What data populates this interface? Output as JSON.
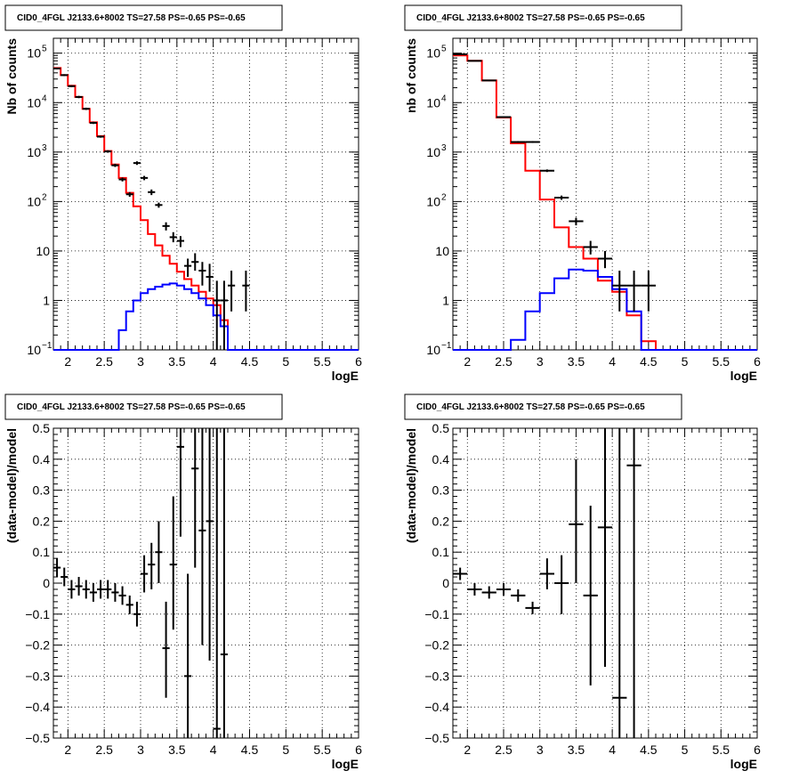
{
  "chart_data": [
    {
      "id": "top-left",
      "type": "histogram",
      "title": "CID0_4FGL J2133.6+8002 TS=27.58 PS=-0.65 PS=-0.65",
      "xlabel": "logE",
      "ylabel": "Nb of counts",
      "xlim": [
        1.8,
        6.0
      ],
      "ylim": [
        0.1,
        200000
      ],
      "yscale": "log",
      "grid": true,
      "xticks": [
        {
          "v": 2,
          "label": "2"
        },
        {
          "v": 2.5,
          "label": "2.5"
        },
        {
          "v": 3,
          "label": "3"
        },
        {
          "v": 3.5,
          "label": "3.5"
        },
        {
          "v": 4,
          "label": "4"
        },
        {
          "v": 4.5,
          "label": "4.5"
        },
        {
          "v": 5,
          "label": "5"
        },
        {
          "v": 5.5,
          "label": "5.5"
        },
        {
          "v": 6,
          "label": "6"
        }
      ],
      "yticks": [
        {
          "v": 0.1,
          "base": "10",
          "exp": "−1"
        },
        {
          "v": 1,
          "base": "1",
          "exp": ""
        },
        {
          "v": 10,
          "base": "10",
          "exp": ""
        },
        {
          "v": 100,
          "base": "10",
          "exp": "2"
        },
        {
          "v": 1000,
          "base": "10",
          "exp": "3"
        },
        {
          "v": 10000,
          "base": "10",
          "exp": "4"
        },
        {
          "v": 100000,
          "base": "10",
          "exp": "5"
        }
      ],
      "series": [
        {
          "kind": "step",
          "color": "#ff0000",
          "x0": 1.8,
          "dx": 0.1,
          "values": [
            50000,
            36000,
            22000,
            13000,
            7500,
            4000,
            2100,
            1050,
            560,
            300,
            150,
            80,
            42,
            22,
            13,
            8,
            5.5,
            3.8,
            2.7,
            2,
            1.5,
            1.1,
            0.8,
            0.4,
            0.1,
            0.1,
            0.1,
            0.1,
            0.1,
            0.1,
            0.1,
            0.1,
            0.1,
            0.1,
            0.1,
            0.1,
            0.1,
            0.1,
            0.1,
            0.1,
            0.1,
            0.1
          ]
        },
        {
          "kind": "step",
          "color": "#0000ff",
          "x0": 1.8,
          "dx": 0.1,
          "values": [
            0.1,
            0.1,
            0.1,
            0.1,
            0.1,
            0.1,
            0.1,
            0.1,
            0.1,
            0.25,
            0.6,
            1.0,
            1.4,
            1.7,
            1.9,
            2.1,
            2.2,
            2.0,
            1.7,
            1.4,
            1.1,
            0.8,
            0.5,
            0.3,
            0.1,
            0.1,
            0.1,
            0.1,
            0.1,
            0.1,
            0.1,
            0.1,
            0.1,
            0.1,
            0.1,
            0.1,
            0.1,
            0.1,
            0.1,
            0.1,
            0.1,
            0.1
          ]
        },
        {
          "kind": "points",
          "color": "#000000",
          "hw": 0.05,
          "points": [
            {
              "x": 1.85,
              "y": 49000,
              "lo": 47000,
              "hi": 51000
            },
            {
              "x": 1.95,
              "y": 36000,
              "lo": 34500,
              "hi": 37500
            },
            {
              "x": 2.05,
              "y": 21500,
              "lo": 20500,
              "hi": 22500
            },
            {
              "x": 2.15,
              "y": 13000,
              "lo": 12300,
              "hi": 13700
            },
            {
              "x": 2.25,
              "y": 7500,
              "lo": 7100,
              "hi": 7900
            },
            {
              "x": 2.35,
              "y": 3900,
              "lo": 3700,
              "hi": 4100
            },
            {
              "x": 2.45,
              "y": 2050,
              "lo": 1950,
              "hi": 2150
            },
            {
              "x": 2.55,
              "y": 1030,
              "lo": 970,
              "hi": 1090
            },
            {
              "x": 2.65,
              "y": 540,
              "lo": 500,
              "hi": 580
            },
            {
              "x": 2.75,
              "y": 280,
              "lo": 255,
              "hi": 305
            },
            {
              "x": 2.85,
              "y": 140,
              "lo": 125,
              "hi": 155
            },
            {
              "x": 2.95,
              "y": 600,
              "lo": 550,
              "hi": 650
            },
            {
              "x": 3.05,
              "y": 300,
              "lo": 270,
              "hi": 330
            },
            {
              "x": 3.15,
              "y": 155,
              "lo": 135,
              "hi": 175
            },
            {
              "x": 3.25,
              "y": 85,
              "lo": 75,
              "hi": 95
            },
            {
              "x": 3.35,
              "y": 32,
              "lo": 26,
              "hi": 38
            },
            {
              "x": 3.45,
              "y": 19,
              "lo": 15,
              "hi": 24
            },
            {
              "x": 3.55,
              "y": 16,
              "lo": 12,
              "hi": 20
            },
            {
              "x": 3.65,
              "y": 5,
              "lo": 3,
              "hi": 7
            },
            {
              "x": 3.75,
              "y": 6,
              "lo": 4,
              "hi": 9
            },
            {
              "x": 3.85,
              "y": 4,
              "lo": 2,
              "hi": 6
            },
            {
              "x": 3.95,
              "y": 3,
              "lo": 1.5,
              "hi": 5.5
            },
            {
              "x": 4.05,
              "y": 1,
              "lo": 0.1,
              "hi": 2.5
            },
            {
              "x": 4.15,
              "y": 1,
              "lo": 0.1,
              "hi": 2.5
            },
            {
              "x": 4.25,
              "y": 2,
              "lo": 0.6,
              "hi": 4
            },
            {
              "x": 4.45,
              "y": 2,
              "lo": 0.6,
              "hi": 4
            }
          ]
        }
      ]
    },
    {
      "id": "top-right",
      "type": "histogram",
      "title": "CID0_4FGL J2133.6+8002 TS=27.58 PS=-0.65 PS=-0.65",
      "xlabel": "logE",
      "ylabel": "nb of counts",
      "xlim": [
        1.8,
        6.0
      ],
      "ylim": [
        0.1,
        200000
      ],
      "yscale": "log",
      "grid": true,
      "xticks": [
        {
          "v": 2,
          "label": "2"
        },
        {
          "v": 2.5,
          "label": "2.5"
        },
        {
          "v": 3,
          "label": "3"
        },
        {
          "v": 3.5,
          "label": "3.5"
        },
        {
          "v": 4,
          "label": "4"
        },
        {
          "v": 4.5,
          "label": "4.5"
        },
        {
          "v": 5,
          "label": "5"
        },
        {
          "v": 5.5,
          "label": "5.5"
        },
        {
          "v": 6,
          "label": "6"
        }
      ],
      "yticks": [
        {
          "v": 0.1,
          "base": "10",
          "exp": "−1"
        },
        {
          "v": 1,
          "base": "1",
          "exp": ""
        },
        {
          "v": 10,
          "base": "10",
          "exp": ""
        },
        {
          "v": 100,
          "base": "10",
          "exp": "2"
        },
        {
          "v": 1000,
          "base": "10",
          "exp": "3"
        },
        {
          "v": 10000,
          "base": "10",
          "exp": "4"
        },
        {
          "v": 100000,
          "base": "10",
          "exp": "5"
        }
      ],
      "series": [
        {
          "kind": "step",
          "color": "#ff0000",
          "x0": 1.8,
          "dx": 0.2,
          "values": [
            90000,
            70000,
            28000,
            5000,
            1500,
            420,
            110,
            30,
            12,
            7,
            2.5,
            1.5,
            0.5,
            0.15,
            0.1,
            0.1,
            0.1,
            0.1,
            0.1,
            0.1,
            0.1
          ]
        },
        {
          "kind": "step",
          "color": "#0000ff",
          "x0": 1.8,
          "dx": 0.2,
          "values": [
            0.1,
            0.1,
            0.1,
            0.1,
            0.16,
            0.6,
            1.4,
            2.8,
            4.2,
            4.0,
            3.0,
            1.7,
            0.6,
            0.1,
            0.1,
            0.1,
            0.1,
            0.1,
            0.1,
            0.1,
            0.1
          ]
        },
        {
          "kind": "points",
          "color": "#000000",
          "hw": 0.1,
          "points": [
            {
              "x": 1.9,
              "y": 95000,
              "lo": 93000,
              "hi": 97000
            },
            {
              "x": 2.1,
              "y": 70000,
              "lo": 68500,
              "hi": 71500
            },
            {
              "x": 2.3,
              "y": 28000,
              "lo": 27200,
              "hi": 28800
            },
            {
              "x": 2.5,
              "y": 5100,
              "lo": 4950,
              "hi": 5250
            },
            {
              "x": 2.7,
              "y": 1600,
              "lo": 1530,
              "hi": 1670
            },
            {
              "x": 2.9,
              "y": 1600,
              "lo": 1530,
              "hi": 1670
            },
            {
              "x": 3.1,
              "y": 420,
              "lo": 395,
              "hi": 445
            },
            {
              "x": 3.3,
              "y": 120,
              "lo": 108,
              "hi": 132
            },
            {
              "x": 3.5,
              "y": 40,
              "lo": 33,
              "hi": 47
            },
            {
              "x": 3.7,
              "y": 12,
              "lo": 8.5,
              "hi": 16
            },
            {
              "x": 3.9,
              "y": 7,
              "lo": 4.5,
              "hi": 10
            },
            {
              "x": 4.1,
              "y": 2,
              "lo": 0.6,
              "hi": 4
            },
            {
              "x": 4.3,
              "y": 2,
              "lo": 0.6,
              "hi": 4
            },
            {
              "x": 4.5,
              "y": 2,
              "lo": 0.6,
              "hi": 4
            }
          ]
        }
      ]
    },
    {
      "id": "bottom-left",
      "type": "scatter",
      "title": "CID0_4FGL J2133.6+8002 TS=27.58 PS=-0.65 PS=-0.65",
      "xlabel": "logE",
      "ylabel": "(data-model)/model",
      "xlim": [
        1.8,
        6.0
      ],
      "ylim": [
        -0.5,
        0.5
      ],
      "yscale": "linear",
      "grid": true,
      "xticks": [
        {
          "v": 2,
          "label": "2"
        },
        {
          "v": 2.5,
          "label": "2.5"
        },
        {
          "v": 3,
          "label": "3"
        },
        {
          "v": 3.5,
          "label": "3.5"
        },
        {
          "v": 4,
          "label": "4"
        },
        {
          "v": 4.5,
          "label": "4.5"
        },
        {
          "v": 5,
          "label": "5"
        },
        {
          "v": 5.5,
          "label": "5.5"
        },
        {
          "v": 6,
          "label": "6"
        }
      ],
      "yticks": [
        {
          "v": -0.5,
          "label": "−0.5"
        },
        {
          "v": -0.4,
          "label": "−0.4"
        },
        {
          "v": -0.3,
          "label": "−0.3"
        },
        {
          "v": -0.2,
          "label": "−0.2"
        },
        {
          "v": -0.1,
          "label": "−0.1"
        },
        {
          "v": 0,
          "label": "0"
        },
        {
          "v": 0.1,
          "label": "0.1"
        },
        {
          "v": 0.2,
          "label": "0.2"
        },
        {
          "v": 0.3,
          "label": "0.3"
        },
        {
          "v": 0.4,
          "label": "0.4"
        },
        {
          "v": 0.5,
          "label": "0.5"
        }
      ],
      "series": [
        {
          "kind": "points",
          "color": "#000000",
          "hw": 0.05,
          "points": [
            {
              "x": 1.85,
              "y": 0.05,
              "lo": 0.02,
              "hi": 0.08
            },
            {
              "x": 1.95,
              "y": 0.02,
              "lo": -0.01,
              "hi": 0.05
            },
            {
              "x": 2.05,
              "y": -0.02,
              "lo": -0.05,
              "hi": 0.01
            },
            {
              "x": 2.15,
              "y": -0.01,
              "lo": -0.04,
              "hi": 0.02
            },
            {
              "x": 2.25,
              "y": -0.02,
              "lo": -0.05,
              "hi": 0.01
            },
            {
              "x": 2.35,
              "y": -0.03,
              "lo": -0.06,
              "hi": 0.0
            },
            {
              "x": 2.45,
              "y": -0.02,
              "lo": -0.05,
              "hi": 0.01
            },
            {
              "x": 2.55,
              "y": -0.02,
              "lo": -0.05,
              "hi": 0.01
            },
            {
              "x": 2.65,
              "y": -0.03,
              "lo": -0.06,
              "hi": 0.0
            },
            {
              "x": 2.75,
              "y": -0.04,
              "lo": -0.07,
              "hi": -0.01
            },
            {
              "x": 2.85,
              "y": -0.07,
              "lo": -0.1,
              "hi": -0.04
            },
            {
              "x": 2.95,
              "y": -0.1,
              "lo": -0.14,
              "hi": -0.06
            },
            {
              "x": 3.05,
              "y": 0.03,
              "lo": -0.03,
              "hi": 0.09
            },
            {
              "x": 3.15,
              "y": 0.06,
              "lo": -0.02,
              "hi": 0.13
            },
            {
              "x": 3.25,
              "y": 0.1,
              "lo": 0.0,
              "hi": 0.2
            },
            {
              "x": 3.35,
              "y": -0.21,
              "lo": -0.37,
              "hi": -0.06
            },
            {
              "x": 3.45,
              "y": 0.06,
              "lo": -0.15,
              "hi": 0.28
            },
            {
              "x": 3.55,
              "y": 0.44,
              "lo": 0.15,
              "hi": 0.55
            },
            {
              "x": 3.65,
              "y": -0.3,
              "lo": -0.55,
              "hi": 0.03
            },
            {
              "x": 3.75,
              "y": 0.37,
              "lo": 0.05,
              "hi": 0.55
            },
            {
              "x": 3.85,
              "y": 0.17,
              "lo": -0.2,
              "hi": 0.55
            },
            {
              "x": 3.95,
              "y": 0.2,
              "lo": -0.25,
              "hi": 0.55
            },
            {
              "x": 4.05,
              "y": -0.47,
              "lo": -0.55,
              "hi": 0.55
            },
            {
              "x": 4.15,
              "y": -0.23,
              "lo": -0.55,
              "hi": 0.55
            }
          ]
        }
      ]
    },
    {
      "id": "bottom-right",
      "type": "scatter",
      "title": "CID0_4FGL J2133.6+8002 TS=27.58 PS=-0.65 PS=-0.65",
      "xlabel": "logE",
      "ylabel": "(data-model)/model",
      "xlim": [
        1.8,
        6.0
      ],
      "ylim": [
        -0.5,
        0.5
      ],
      "yscale": "linear",
      "grid": true,
      "xticks": [
        {
          "v": 2,
          "label": "2"
        },
        {
          "v": 2.5,
          "label": "2.5"
        },
        {
          "v": 3,
          "label": "3"
        },
        {
          "v": 3.5,
          "label": "3.5"
        },
        {
          "v": 4,
          "label": "4"
        },
        {
          "v": 4.5,
          "label": "4.5"
        },
        {
          "v": 5,
          "label": "5"
        },
        {
          "v": 5.5,
          "label": "5.5"
        },
        {
          "v": 6,
          "label": "6"
        }
      ],
      "yticks": [
        {
          "v": -0.5,
          "label": "−0.5"
        },
        {
          "v": -0.4,
          "label": "−0.4"
        },
        {
          "v": -0.3,
          "label": "−0.3"
        },
        {
          "v": -0.2,
          "label": "−0.2"
        },
        {
          "v": -0.1,
          "label": "−0.1"
        },
        {
          "v": 0,
          "label": "0"
        },
        {
          "v": 0.1,
          "label": "0.1"
        },
        {
          "v": 0.2,
          "label": "0.2"
        },
        {
          "v": 0.3,
          "label": "0.3"
        },
        {
          "v": 0.4,
          "label": "0.4"
        },
        {
          "v": 0.5,
          "label": "0.5"
        }
      ],
      "series": [
        {
          "kind": "points",
          "color": "#000000",
          "hw": 0.1,
          "points": [
            {
              "x": 1.9,
              "y": 0.03,
              "lo": 0.01,
              "hi": 0.05
            },
            {
              "x": 2.1,
              "y": -0.02,
              "lo": -0.04,
              "hi": 0.0
            },
            {
              "x": 2.3,
              "y": -0.03,
              "lo": -0.05,
              "hi": -0.01
            },
            {
              "x": 2.5,
              "y": -0.02,
              "lo": -0.04,
              "hi": 0.0
            },
            {
              "x": 2.7,
              "y": -0.04,
              "lo": -0.06,
              "hi": -0.02
            },
            {
              "x": 2.9,
              "y": -0.08,
              "lo": -0.1,
              "hi": -0.06
            },
            {
              "x": 3.1,
              "y": 0.03,
              "lo": -0.02,
              "hi": 0.08
            },
            {
              "x": 3.3,
              "y": 0.0,
              "lo": -0.1,
              "hi": 0.09
            },
            {
              "x": 3.5,
              "y": 0.19,
              "lo": 0.0,
              "hi": 0.4
            },
            {
              "x": 3.7,
              "y": -0.04,
              "lo": -0.33,
              "hi": 0.25
            },
            {
              "x": 3.9,
              "y": 0.18,
              "lo": -0.27,
              "hi": 0.55
            },
            {
              "x": 4.1,
              "y": -0.37,
              "lo": -0.55,
              "hi": 0.55
            },
            {
              "x": 4.3,
              "y": 0.38,
              "lo": -0.55,
              "hi": 0.55
            }
          ]
        }
      ]
    }
  ]
}
